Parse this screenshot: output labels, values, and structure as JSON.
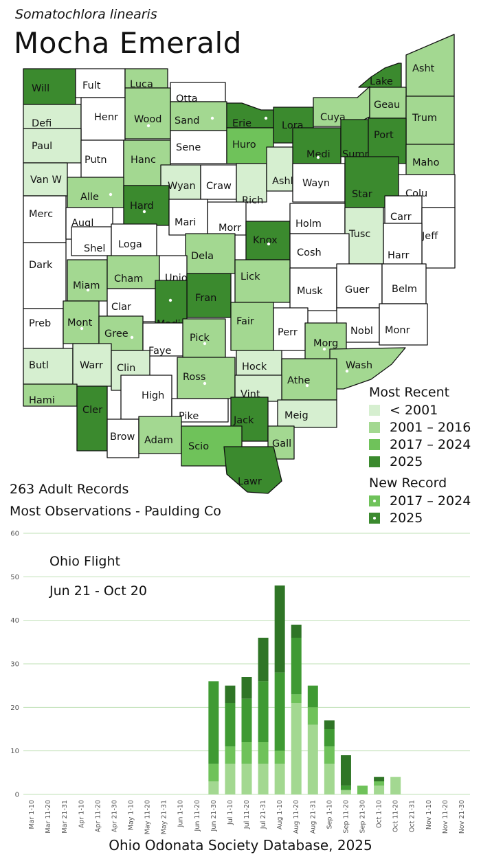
{
  "species": {
    "scientific_name": "Somatochlora linearis",
    "common_name": "Mocha Emerald"
  },
  "colors": {
    "pre2001": "#d6efd0",
    "y2001_2016": "#a3d891",
    "y2017_2024": "#6fc25a",
    "y2025": "#3b8a2e",
    "none": "#ffffff"
  },
  "counties": [
    {
      "label": "Will",
      "status": "2025",
      "dot": false
    },
    {
      "label": "Fult",
      "status": "none",
      "dot": false
    },
    {
      "label": "Luca",
      "status": "2001-2016",
      "dot": false
    },
    {
      "label": "Otta",
      "status": "none",
      "dot": false
    },
    {
      "label": "Lake",
      "status": "2025",
      "dot": false
    },
    {
      "label": "Asht",
      "status": "2001-2016",
      "dot": false
    },
    {
      "label": "Defi",
      "status": "<2001",
      "dot": false
    },
    {
      "label": "Henr",
      "status": "none",
      "dot": false
    },
    {
      "label": "Wood",
      "status": "2001-2016",
      "dot": true
    },
    {
      "label": "Sand",
      "status": "2001-2016",
      "dot": true
    },
    {
      "label": "Erie",
      "status": "2025",
      "dot": true
    },
    {
      "label": "Lora",
      "status": "2025",
      "dot": false
    },
    {
      "label": "Cuya",
      "status": "2001-2016",
      "dot": false
    },
    {
      "label": "Geau",
      "status": "2001-2016",
      "dot": false
    },
    {
      "label": "Trum",
      "status": "2001-2016",
      "dot": false
    },
    {
      "label": "Paul",
      "status": "<2001",
      "dot": false
    },
    {
      "label": "Putn",
      "status": "none",
      "dot": false
    },
    {
      "label": "Hanc",
      "status": "2001-2016",
      "dot": false
    },
    {
      "label": "Sene",
      "status": "none",
      "dot": false
    },
    {
      "label": "Huro",
      "status": "2017-2024",
      "dot": false
    },
    {
      "label": "Medi",
      "status": "2025",
      "dot": true
    },
    {
      "label": "Summ",
      "status": "2025",
      "dot": false
    },
    {
      "label": "Port",
      "status": "2025",
      "dot": false
    },
    {
      "label": "Maho",
      "status": "2001-2016",
      "dot": false
    },
    {
      "label": "Van W",
      "status": "<2001",
      "dot": false
    },
    {
      "label": "Alle",
      "status": "2001-2016",
      "dot": true
    },
    {
      "label": "Wyan",
      "status": "<2001",
      "dot": false
    },
    {
      "label": "Craw",
      "status": "none",
      "dot": false
    },
    {
      "label": "Rich",
      "status": "<2001",
      "dot": false
    },
    {
      "label": "Ashl",
      "status": "<2001",
      "dot": false
    },
    {
      "label": "Wayn",
      "status": "none",
      "dot": false
    },
    {
      "label": "Star",
      "status": "2025",
      "dot": false
    },
    {
      "label": "Colu",
      "status": "none",
      "dot": false
    },
    {
      "label": "Merc",
      "status": "none",
      "dot": false
    },
    {
      "label": "Augl",
      "status": "none",
      "dot": false
    },
    {
      "label": "Hard",
      "status": "2025",
      "dot": true
    },
    {
      "label": "Mari",
      "status": "none",
      "dot": false
    },
    {
      "label": "Morr",
      "status": "none",
      "dot": false
    },
    {
      "label": "Knox",
      "status": "2025",
      "dot": true
    },
    {
      "label": "Holm",
      "status": "none",
      "dot": false
    },
    {
      "label": "Carr",
      "status": "none",
      "dot": false
    },
    {
      "label": "Jeff",
      "status": "none",
      "dot": false
    },
    {
      "label": "Shel",
      "status": "none",
      "dot": false
    },
    {
      "label": "Loga",
      "status": "none",
      "dot": false
    },
    {
      "label": "Tusc",
      "status": "<2001",
      "dot": false
    },
    {
      "label": "Harr",
      "status": "none",
      "dot": false
    },
    {
      "label": "Dark",
      "status": "none",
      "dot": false
    },
    {
      "label": "Dela",
      "status": "2001-2016",
      "dot": false
    },
    {
      "label": "Cosh",
      "status": "none",
      "dot": false
    },
    {
      "label": "Miam",
      "status": "2001-2016",
      "dot": true
    },
    {
      "label": "Cham",
      "status": "2001-2016",
      "dot": false
    },
    {
      "label": "Unio",
      "status": "none",
      "dot": false
    },
    {
      "label": "Lick",
      "status": "2001-2016",
      "dot": false
    },
    {
      "label": "Musk",
      "status": "none",
      "dot": false
    },
    {
      "label": "Guer",
      "status": "none",
      "dot": false
    },
    {
      "label": "Belm",
      "status": "none",
      "dot": false
    },
    {
      "label": "Clar",
      "status": "none",
      "dot": false
    },
    {
      "label": "Fran",
      "status": "2025",
      "dot": false
    },
    {
      "label": "Madi",
      "status": "2025",
      "dot": true
    },
    {
      "label": "Preb",
      "status": "none",
      "dot": false
    },
    {
      "label": "Mont",
      "status": "2001-2016",
      "dot": true
    },
    {
      "label": "Gree",
      "status": "2001-2016",
      "dot": true
    },
    {
      "label": "Fair",
      "status": "2001-2016",
      "dot": false
    },
    {
      "label": "Perr",
      "status": "none",
      "dot": false
    },
    {
      "label": "Nobl",
      "status": "none",
      "dot": false
    },
    {
      "label": "Monr",
      "status": "none",
      "dot": false
    },
    {
      "label": "Faye",
      "status": "none",
      "dot": false
    },
    {
      "label": "Pick",
      "status": "2001-2016",
      "dot": true
    },
    {
      "label": "Morg",
      "status": "2001-2016",
      "dot": true
    },
    {
      "label": "Butl",
      "status": "<2001",
      "dot": false
    },
    {
      "label": "Warr",
      "status": "<2001",
      "dot": false
    },
    {
      "label": "Clin",
      "status": "<2001",
      "dot": false
    },
    {
      "label": "Hock",
      "status": "<2001",
      "dot": false
    },
    {
      "label": "Wash",
      "status": "2001-2016",
      "dot": true
    },
    {
      "label": "Ross",
      "status": "2001-2016",
      "dot": true
    },
    {
      "label": "Athe",
      "status": "2001-2016",
      "dot": true
    },
    {
      "label": "Hami",
      "status": "2001-2016",
      "dot": false
    },
    {
      "label": "High",
      "status": "none",
      "dot": false
    },
    {
      "label": "Vint",
      "status": "<2001",
      "dot": false
    },
    {
      "label": "Cler",
      "status": "2025",
      "dot": false
    },
    {
      "label": "Pike",
      "status": "none",
      "dot": false
    },
    {
      "label": "Jack",
      "status": "2025",
      "dot": false
    },
    {
      "label": "Meig",
      "status": "<2001",
      "dot": false
    },
    {
      "label": "Brow",
      "status": "none",
      "dot": false
    },
    {
      "label": "Adam",
      "status": "2001-2016",
      "dot": false
    },
    {
      "label": "Scio",
      "status": "2017-2024",
      "dot": false
    },
    {
      "label": "Gall",
      "status": "2001-2016",
      "dot": false
    },
    {
      "label": "Lawr",
      "status": "2025",
      "dot": false
    }
  ],
  "legend": {
    "most_recent_title": "Most Recent",
    "most_recent": [
      {
        "label": "< 2001",
        "color": "#d6efd0"
      },
      {
        "label": "2001 – 2016",
        "color": "#a3d891"
      },
      {
        "label": "2017 – 2024",
        "color": "#6fc25a"
      },
      {
        "label": "2025",
        "color": "#3b8a2e"
      }
    ],
    "new_record_title": "New Record",
    "new_record": [
      {
        "label": "2017 – 2024",
        "color": "#6fc25a"
      },
      {
        "label": "2025",
        "color": "#3b8a2e"
      }
    ]
  },
  "stats": {
    "records": "263 Adult Records",
    "most_observations": "Most Observations - Paulding Co"
  },
  "chart_data": {
    "type": "bar",
    "stacked": true,
    "title": "Ohio Flight",
    "subtitle": "Jun 21 - Oct 20",
    "ylim": [
      0,
      60
    ],
    "yticks": [
      0,
      10,
      20,
      30,
      40,
      50,
      60
    ],
    "grid": true,
    "categories": [
      "Mar 1-10",
      "Mar 11-20",
      "Mar 21-31",
      "Apr 1-10",
      "Apr 11-20",
      "Apr 21-30",
      "May 1-10",
      "May 11-20",
      "May 21-31",
      "Jun 1-10",
      "Jun 11-20",
      "Jun 21-30",
      "Jul 1-10",
      "Jul 11-20",
      "Jul 21-31",
      "Aug 1-10",
      "Aug 11-20",
      "Aug 21-31",
      "Sep 1-10",
      "Sep 11-20",
      "Sep 21-30",
      "Oct 1-10",
      "Oct 11-20",
      "Oct 21-31",
      "Nov 1-10",
      "Nov 11-20",
      "Nov 21-30"
    ],
    "series": [
      {
        "color": "#a3d891",
        "values": [
          0,
          0,
          0,
          0,
          0,
          0,
          0,
          0,
          0,
          0,
          0,
          3,
          7,
          7,
          7,
          7,
          21,
          16,
          7,
          1,
          0,
          2,
          4,
          0,
          0,
          0,
          0
        ]
      },
      {
        "color": "#6fc25a",
        "values": [
          0,
          0,
          0,
          0,
          0,
          0,
          0,
          0,
          0,
          0,
          0,
          4,
          4,
          5,
          5,
          3,
          2,
          4,
          4,
          0,
          2,
          1,
          0,
          0,
          0,
          0,
          0
        ]
      },
      {
        "color": "#3f9a33",
        "values": [
          0,
          0,
          0,
          0,
          0,
          0,
          0,
          0,
          0,
          0,
          0,
          19,
          10,
          10,
          14,
          18,
          13,
          5,
          4,
          1,
          0,
          0,
          0,
          0,
          0,
          0,
          0
        ]
      },
      {
        "color": "#2f7526",
        "values": [
          0,
          0,
          0,
          0,
          0,
          0,
          0,
          0,
          0,
          0,
          0,
          0,
          4,
          5,
          10,
          20,
          3,
          0,
          2,
          7,
          0,
          1,
          0,
          0,
          0,
          0,
          0
        ]
      }
    ]
  },
  "footer": {
    "source": "Ohio Odonata Society Database, 2025"
  }
}
